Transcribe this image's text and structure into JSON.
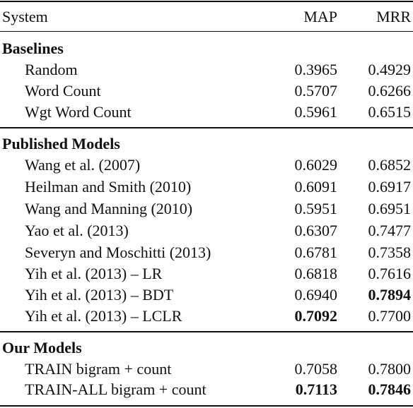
{
  "header": {
    "system": "System",
    "map": "MAP",
    "mrr": "MRR"
  },
  "groups": [
    {
      "title": "Baselines",
      "rows": [
        {
          "system": "Random",
          "map": "0.3965",
          "mrr": "0.4929"
        },
        {
          "system": "Word Count",
          "map": "0.5707",
          "mrr": "0.6266"
        },
        {
          "system": "Wgt Word Count",
          "map": "0.5961",
          "mrr": "0.6515"
        }
      ]
    },
    {
      "title": "Published Models",
      "rows": [
        {
          "system": "Wang et al. (2007)",
          "map": "0.6029",
          "mrr": "0.6852"
        },
        {
          "system": "Heilman and Smith (2010)",
          "map": "0.6091",
          "mrr": "0.6917"
        },
        {
          "system": "Wang and Manning (2010)",
          "map": "0.5951",
          "mrr": "0.6951"
        },
        {
          "system": "Yao et al. (2013)",
          "map": "0.6307",
          "mrr": "0.7477"
        },
        {
          "system": "Severyn and Moschitti (2013)",
          "map": "0.6781",
          "mrr": "0.7358"
        },
        {
          "system": "Yih et al. (2013) – LR",
          "map": "0.6818",
          "mrr": "0.7616"
        },
        {
          "system": "Yih et al. (2013) – BDT",
          "map": "0.6940",
          "mrr": "0.7894",
          "mrr_bold": true
        },
        {
          "system": "Yih et al. (2013) – LCLR",
          "map": "0.7092",
          "mrr": "0.7700",
          "map_bold": true
        }
      ]
    },
    {
      "title": "Our Models",
      "rows": [
        {
          "system": "TRAIN bigram + count",
          "map": "0.7058",
          "mrr": "0.7800"
        },
        {
          "system": "TRAIN-ALL bigram + count",
          "map": "0.7113",
          "mrr": "0.7846",
          "map_bold": true,
          "mrr_bold": true
        }
      ]
    }
  ]
}
